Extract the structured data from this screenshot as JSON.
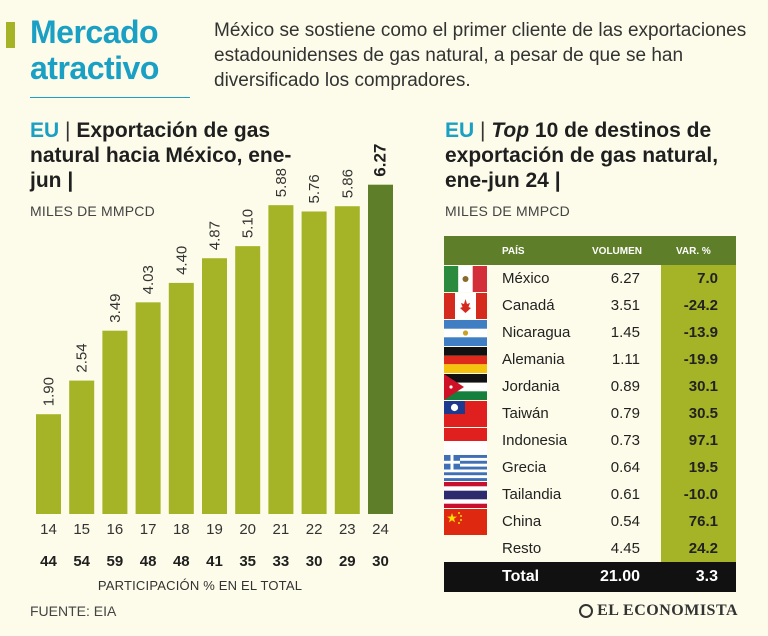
{
  "header": {
    "title_line1": "Mercado",
    "title_line2": "atractivo",
    "intro": "México se sostiene como el primer cliente de las exportaciones estadounidenses de gas natural, a pesar de que se han diversificado los compradores."
  },
  "left": {
    "eu": "EU",
    "sep": "|",
    "title": "Exportación de gas natural hacia México, ene-jun |",
    "subtitle": "MILES DE MMPCD",
    "axis_caption": "PARTICIPACIÓN % EN EL TOTAL"
  },
  "right": {
    "eu": "EU",
    "sep": "|",
    "title_top": "Top",
    "title_rest": "10 de destinos de exportación de gas natural, ene-jun 24 |",
    "subtitle": "MILES DE MMPCD",
    "table": {
      "headers": {
        "country": "PAÍS",
        "volume": "VOLUMEN",
        "var": "VAR. %"
      },
      "rows": [
        {
          "flag": "mexico-flag-icon",
          "country": "México",
          "volume": "6.27",
          "var": "7.0"
        },
        {
          "flag": "canada-flag-icon",
          "country": "Canadá",
          "volume": "3.51",
          "var": "-24.2"
        },
        {
          "flag": "nicaragua-flag-icon",
          "country": "Nicaragua",
          "volume": "1.45",
          "var": "-13.9"
        },
        {
          "flag": "germany-flag-icon",
          "country": "Alemania",
          "volume": "1.11",
          "var": "-19.9"
        },
        {
          "flag": "jordan-flag-icon",
          "country": "Jordania",
          "volume": "0.89",
          "var": "30.1"
        },
        {
          "flag": "taiwan-flag-icon",
          "country": "Taiwán",
          "volume": "0.79",
          "var": "30.5"
        },
        {
          "flag": "indonesia-flag-icon",
          "country": "Indonesia",
          "volume": "0.73",
          "var": "97.1"
        },
        {
          "flag": "greece-flag-icon",
          "country": "Grecia",
          "volume": "0.64",
          "var": "19.5"
        },
        {
          "flag": "thailand-flag-icon",
          "country": "Tailandia",
          "volume": "0.61",
          "var": "-10.0"
        },
        {
          "flag": "china-flag-icon",
          "country": "China",
          "volume": "0.54",
          "var": "76.1"
        },
        {
          "flag": "",
          "country": "Resto",
          "volume": "4.45",
          "var": "24.2"
        }
      ],
      "total": {
        "label": "Total",
        "volume": "21.00",
        "var": "3.3"
      }
    }
  },
  "footer": {
    "source": "FUENTE: EIA",
    "brand": "EL ECONOMISTA"
  },
  "colors": {
    "bar": "#a5b327",
    "bar_highlight": "#5e7e29",
    "accent": "#1aa0c4",
    "background": "#fdfbe9"
  },
  "chart_data": {
    "type": "bar",
    "title": "Exportación de gas natural hacia México, ene-jun",
    "ylabel": "MILES DE MMPCD",
    "xlabel": "PARTICIPACIÓN % EN EL TOTAL",
    "categories": [
      "14",
      "15",
      "16",
      "17",
      "18",
      "19",
      "20",
      "21",
      "22",
      "23",
      "24"
    ],
    "values": [
      1.9,
      2.54,
      3.49,
      4.03,
      4.4,
      4.87,
      5.1,
      5.88,
      5.76,
      5.86,
      6.27
    ],
    "value_labels": [
      "1.90",
      "2.54",
      "3.49",
      "4.03",
      "4.40",
      "4.87",
      "5.10",
      "5.88",
      "5.76",
      "5.86",
      "6.27"
    ],
    "share_pct": [
      "44",
      "54",
      "59",
      "48",
      "48",
      "41",
      "35",
      "33",
      "30",
      "29",
      "30"
    ],
    "ylim": [
      0,
      7
    ],
    "highlight_index": 10
  }
}
